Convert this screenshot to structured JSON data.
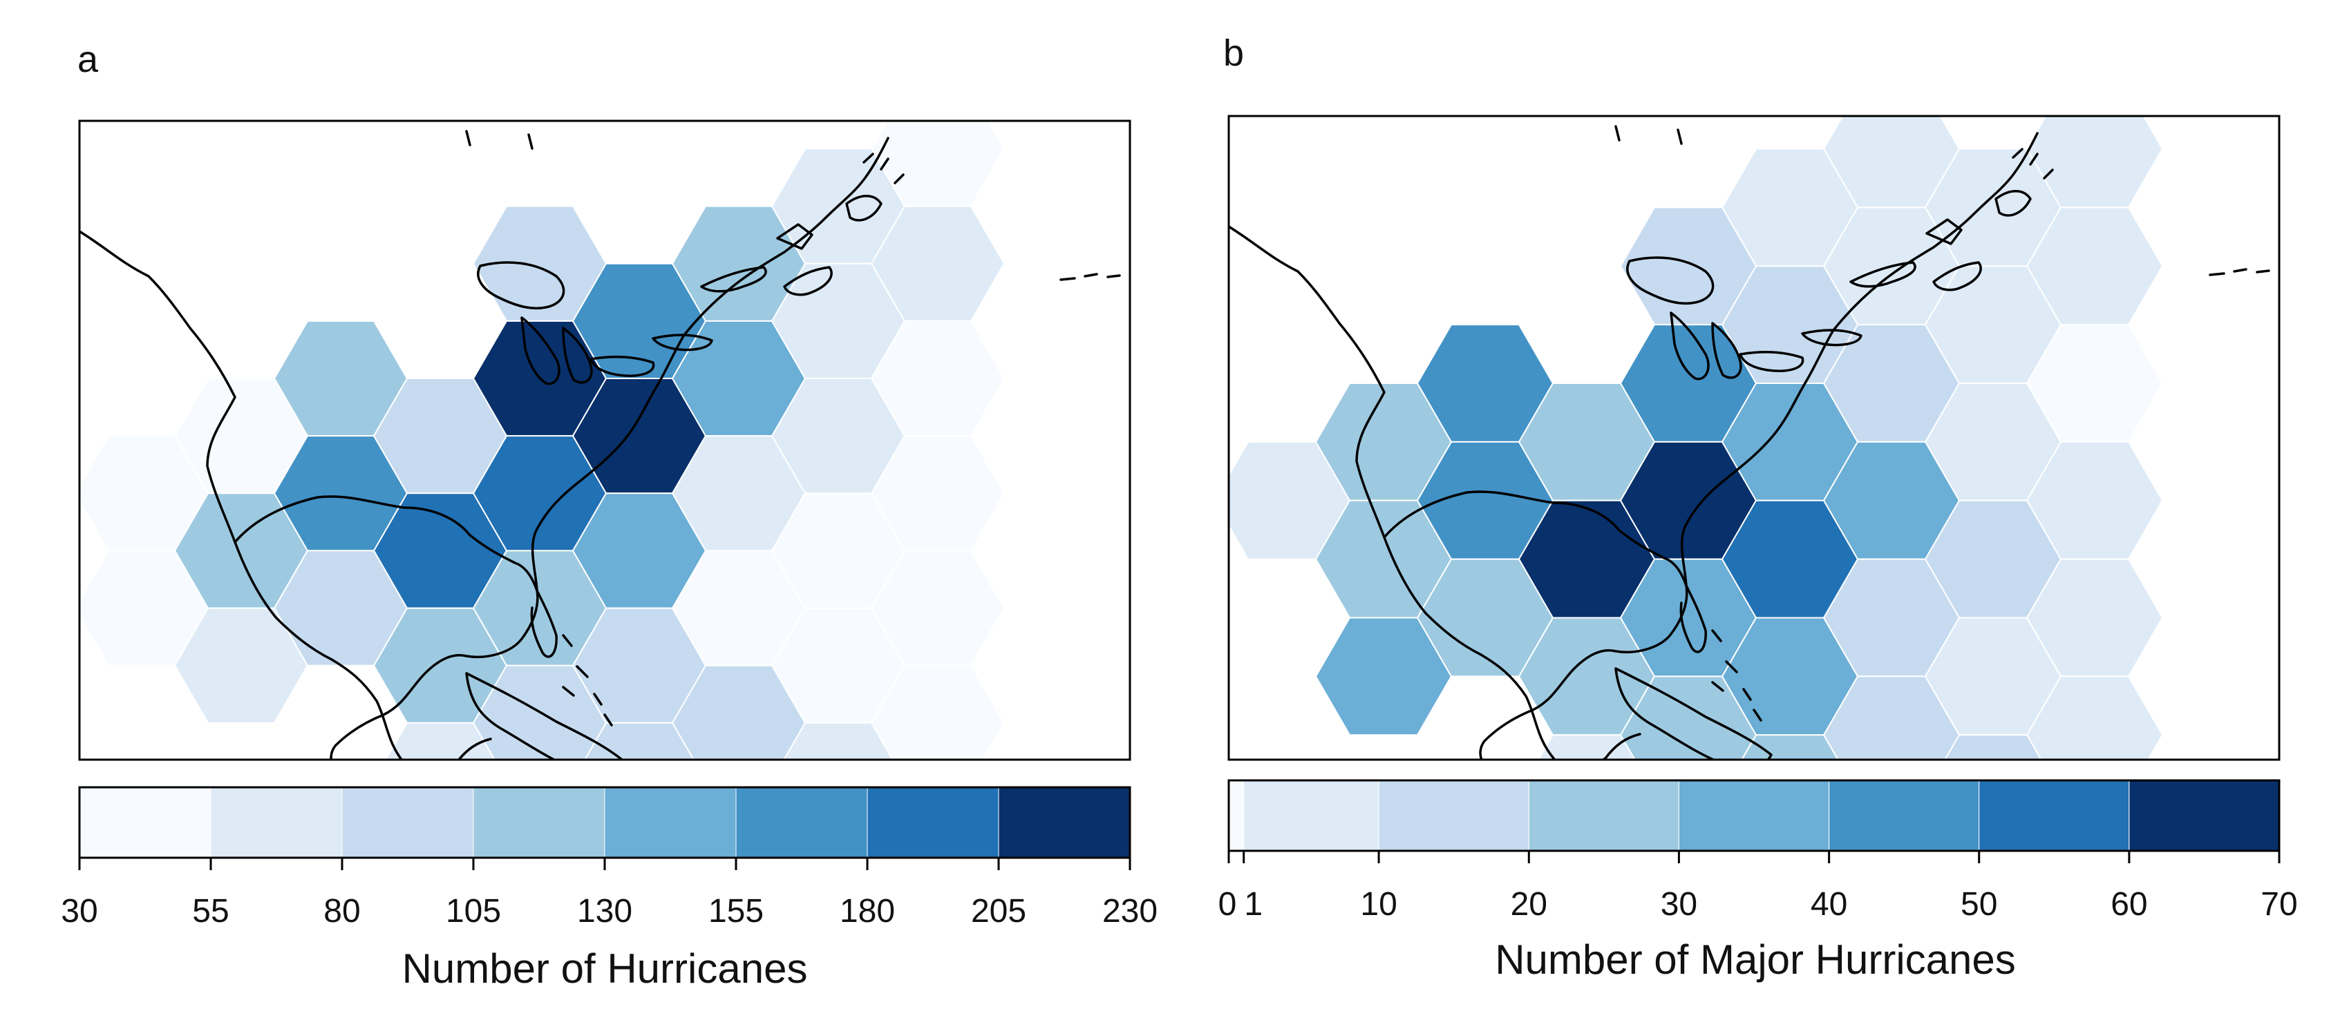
{
  "chart_data": [
    {
      "type": "heatmap",
      "panel": "a",
      "colorbar_label": "Number of Hurricanes",
      "colorbar_ticks": [
        "30",
        "55",
        "80",
        "105",
        "130",
        "155",
        "180",
        "205",
        "230"
      ],
      "colorbar_range": [
        30,
        230
      ],
      "bin_colors": [
        "#f7fbff",
        "#deebf7",
        "#c6dbef",
        "#9ecae1",
        "#6baed6",
        "#4292c6",
        "#2171b5",
        "#08306b"
      ],
      "cells": [
        {
          "col": 0,
          "row": 1,
          "bin": 0
        },
        {
          "col": 0,
          "row": 2,
          "bin": 0
        },
        {
          "col": 1,
          "row": 0,
          "bin": 0
        },
        {
          "col": 1,
          "row": 1,
          "bin": 3
        },
        {
          "col": 1,
          "row": 2,
          "bin": 1
        },
        {
          "col": 2,
          "row": 0,
          "bin": 3
        },
        {
          "col": 2,
          "row": 1,
          "bin": 5
        },
        {
          "col": 2,
          "row": 2,
          "bin": 2
        },
        {
          "col": 3,
          "row": 0,
          "bin": 2
        },
        {
          "col": 3,
          "row": 1,
          "bin": 6
        },
        {
          "col": 3,
          "row": 2,
          "bin": 3
        },
        {
          "col": 3,
          "row": 3,
          "bin": 1
        },
        {
          "col": 4,
          "row": -1,
          "bin": 2
        },
        {
          "col": 4,
          "row": 0,
          "bin": 7
        },
        {
          "col": 4,
          "row": 1,
          "bin": 6
        },
        {
          "col": 4,
          "row": 2,
          "bin": 3
        },
        {
          "col": 4,
          "row": 3,
          "bin": 2
        },
        {
          "col": 5,
          "row": -1,
          "bin": 5
        },
        {
          "col": 5,
          "row": 0,
          "bin": 7
        },
        {
          "col": 5,
          "row": 1,
          "bin": 4
        },
        {
          "col": 5,
          "row": 2,
          "bin": 2
        },
        {
          "col": 5,
          "row": 3,
          "bin": 2
        },
        {
          "col": 6,
          "row": -1,
          "bin": 3
        },
        {
          "col": 6,
          "row": 0,
          "bin": 4
        },
        {
          "col": 6,
          "row": 1,
          "bin": 1
        },
        {
          "col": 6,
          "row": 2,
          "bin": 0
        },
        {
          "col": 6,
          "row": 3,
          "bin": 2
        },
        {
          "col": 7,
          "row": -2,
          "bin": 1
        },
        {
          "col": 7,
          "row": -1,
          "bin": 1
        },
        {
          "col": 7,
          "row": 0,
          "bin": 1
        },
        {
          "col": 7,
          "row": 1,
          "bin": 0
        },
        {
          "col": 7,
          "row": 2,
          "bin": 0
        },
        {
          "col": 7,
          "row": 3,
          "bin": 1
        },
        {
          "col": 8,
          "row": -2,
          "bin": 0
        },
        {
          "col": 8,
          "row": -1,
          "bin": 1
        },
        {
          "col": 8,
          "row": 0,
          "bin": 0
        },
        {
          "col": 8,
          "row": 1,
          "bin": 0
        },
        {
          "col": 8,
          "row": 2,
          "bin": 0
        },
        {
          "col": 8,
          "row": 3,
          "bin": 0
        }
      ]
    },
    {
      "type": "heatmap",
      "panel": "b",
      "colorbar_label": "Number of Major Hurricanes",
      "colorbar_ticks": [
        "0",
        "1",
        "10",
        "20",
        "30",
        "40",
        "50",
        "60",
        "70"
      ],
      "colorbar_range": [
        0,
        70
      ],
      "colorbar_edges": [
        0,
        1,
        10,
        20,
        30,
        40,
        50,
        60,
        70
      ],
      "tick_values": [
        0,
        1,
        10,
        20,
        30,
        40,
        50,
        60,
        70
      ],
      "bin_colors": [
        "#f7fbff",
        "#deebf7",
        "#c6dbef",
        "#9ecae1",
        "#6baed6",
        "#4292c6",
        "#2171b5",
        "#08306b"
      ],
      "cells": [
        {
          "col": 0,
          "row": 1,
          "bin": 1
        },
        {
          "col": 1,
          "row": 0,
          "bin": 3
        },
        {
          "col": 1,
          "row": 1,
          "bin": 3
        },
        {
          "col": 1,
          "row": 2,
          "bin": 4
        },
        {
          "col": 2,
          "row": 0,
          "bin": 5
        },
        {
          "col": 2,
          "row": 1,
          "bin": 5
        },
        {
          "col": 2,
          "row": 2,
          "bin": 3
        },
        {
          "col": 3,
          "row": 0,
          "bin": 3
        },
        {
          "col": 3,
          "row": 1,
          "bin": 7
        },
        {
          "col": 3,
          "row": 2,
          "bin": 3
        },
        {
          "col": 3,
          "row": 3,
          "bin": 1
        },
        {
          "col": 4,
          "row": -1,
          "bin": 2
        },
        {
          "col": 4,
          "row": 0,
          "bin": 5
        },
        {
          "col": 4,
          "row": 1,
          "bin": 7
        },
        {
          "col": 4,
          "row": 2,
          "bin": 4
        },
        {
          "col": 4,
          "row": 3,
          "bin": 3
        },
        {
          "col": 5,
          "row": -2,
          "bin": 1
        },
        {
          "col": 5,
          "row": -1,
          "bin": 2
        },
        {
          "col": 5,
          "row": 0,
          "bin": 4
        },
        {
          "col": 5,
          "row": 1,
          "bin": 6
        },
        {
          "col": 5,
          "row": 2,
          "bin": 4
        },
        {
          "col": 5,
          "row": 3,
          "bin": 3
        },
        {
          "col": 6,
          "row": -2,
          "bin": 1
        },
        {
          "col": 6,
          "row": -1,
          "bin": 1
        },
        {
          "col": 6,
          "row": 0,
          "bin": 2
        },
        {
          "col": 6,
          "row": 1,
          "bin": 4
        },
        {
          "col": 6,
          "row": 2,
          "bin": 2
        },
        {
          "col": 6,
          "row": 3,
          "bin": 2
        },
        {
          "col": 7,
          "row": -2,
          "bin": 1
        },
        {
          "col": 7,
          "row": -1,
          "bin": 1
        },
        {
          "col": 7,
          "row": 0,
          "bin": 1
        },
        {
          "col": 7,
          "row": 1,
          "bin": 2
        },
        {
          "col": 7,
          "row": 2,
          "bin": 1
        },
        {
          "col": 7,
          "row": 3,
          "bin": 2
        },
        {
          "col": 8,
          "row": -2,
          "bin": 1
        },
        {
          "col": 8,
          "row": -1,
          "bin": 1
        },
        {
          "col": 8,
          "row": 0,
          "bin": 0
        },
        {
          "col": 8,
          "row": 1,
          "bin": 1
        },
        {
          "col": 8,
          "row": 2,
          "bin": 1
        },
        {
          "col": 8,
          "row": 3,
          "bin": 1
        }
      ]
    }
  ]
}
